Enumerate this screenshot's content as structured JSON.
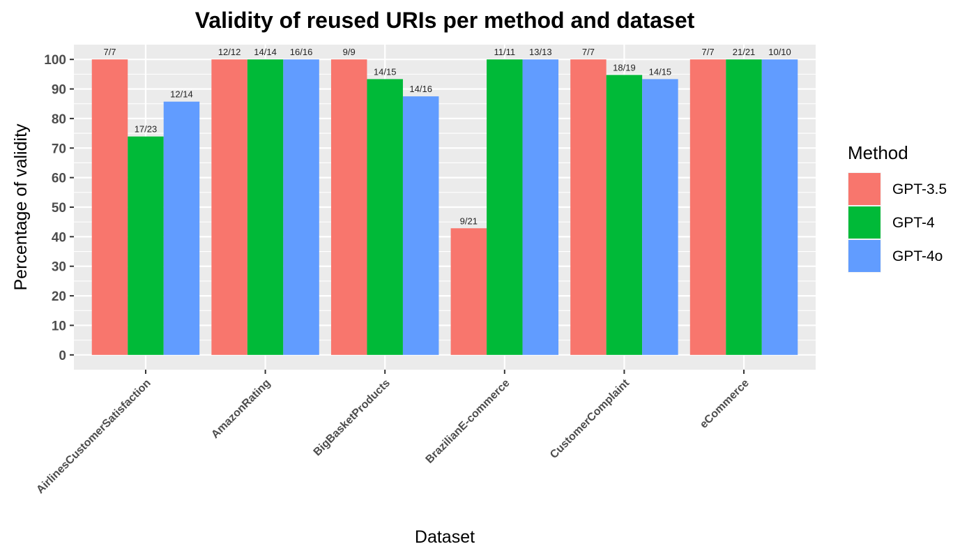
{
  "chart_data": {
    "type": "bar",
    "title": "Validity of reused URIs per method and dataset",
    "xlabel": "Dataset",
    "ylabel": "Percentage of validity",
    "ylim": [
      -5,
      105
    ],
    "yticks": [
      0,
      10,
      20,
      30,
      40,
      50,
      60,
      70,
      80,
      90,
      100
    ],
    "grid": true,
    "legend_position": "right",
    "legend_title": "Method",
    "categories": [
      "AirlinesCustomerSatisfaction",
      "AmazonRating",
      "BigBasketProducts",
      "BrazilianE-commerce",
      "CustomerComplaint",
      "eCommerce"
    ],
    "series": [
      {
        "name": "GPT-3.5",
        "color": "#F8766D",
        "values": [
          100,
          100,
          100,
          42.857,
          100,
          100
        ],
        "labels": [
          "7/7",
          "12/12",
          "9/9",
          "9/21",
          "7/7",
          "7/7"
        ]
      },
      {
        "name": "GPT-4",
        "color": "#00BA38",
        "values": [
          73.913,
          100,
          93.333,
          100,
          94.737,
          100
        ],
        "labels": [
          "17/23",
          "14/14",
          "14/15",
          "11/11",
          "18/19",
          "21/21"
        ]
      },
      {
        "name": "GPT-4o",
        "color": "#619CFF",
        "values": [
          85.714,
          100,
          87.5,
          100,
          93.333,
          100
        ],
        "labels": [
          "12/14",
          "16/16",
          "14/16",
          "13/13",
          "14/15",
          "10/10"
        ]
      }
    ]
  },
  "colors": {
    "panel_background": "#EBEBEB",
    "grid": "#FFFFFF",
    "axis_text": "#4D4D4D",
    "text": "#000000"
  }
}
